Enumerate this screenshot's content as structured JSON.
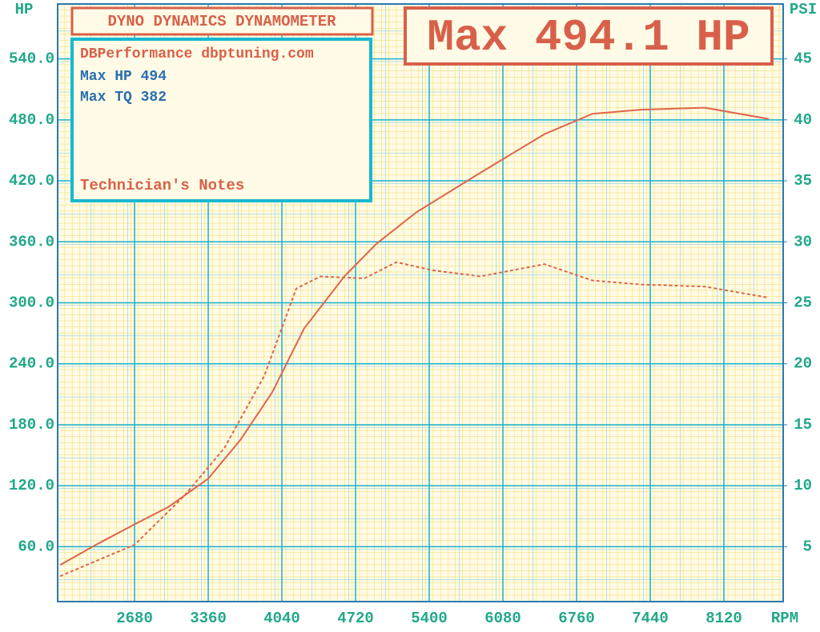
{
  "chart_data": {
    "type": "line",
    "header": "DYNO DYNAMICS DYNAMOMETER",
    "headline": "Max 494.1 HP",
    "notes": [
      "DBPerformance dbptuning.com",
      "Max HP 494",
      "Max TQ 382",
      "Technician's Notes"
    ],
    "ylabel": "HP",
    "y2label": "PSI",
    "xlabel": "RPM",
    "xlim": [
      1970,
      8667
    ],
    "xticks": [
      2680,
      3360,
      4040,
      4720,
      5400,
      6080,
      6760,
      7440,
      8120
    ],
    "ylim": [
      6,
      594
    ],
    "yticks": [
      {
        "value": 60,
        "label": "60.0"
      },
      {
        "value": 120,
        "label": "120.0"
      },
      {
        "value": 180,
        "label": "180.0"
      },
      {
        "value": 240,
        "label": "240.0"
      },
      {
        "value": 300,
        "label": "300.0"
      },
      {
        "value": 360,
        "label": "360.0"
      },
      {
        "value": 420,
        "label": "420.0"
      },
      {
        "value": 480,
        "label": "480.0"
      },
      {
        "value": 540,
        "label": "540.0"
      }
    ],
    "y2lim": [
      0.5,
      49.5
    ],
    "y2ticks": [
      5,
      10,
      15,
      20,
      25,
      30,
      35,
      40,
      45
    ],
    "grid": true,
    "series": [
      {
        "color": "#e0644c",
        "dash": false,
        "x": [
          1993,
          2325,
          2680,
          2990,
          3360,
          3656,
          3951,
          4247,
          4616,
          4912,
          5281,
          5873,
          6464,
          6907,
          7351,
          7942,
          8533
        ],
        "values": [
          42,
          62,
          82,
          99,
          127,
          165,
          212,
          275,
          326,
          358,
          389,
          428,
          466,
          486,
          490,
          492,
          481
        ]
      },
      {
        "color": "#e0644c",
        "dash": true,
        "x": [
          1993,
          2680,
          3138,
          3508,
          3877,
          4173,
          4395,
          4801,
          5097,
          5429,
          5873,
          6464,
          6907,
          7351,
          7942,
          8533
        ],
        "values": [
          31,
          62,
          110,
          157,
          228,
          314,
          326,
          324,
          340,
          332,
          326,
          338,
          322,
          318,
          316,
          305
        ]
      }
    ]
  }
}
